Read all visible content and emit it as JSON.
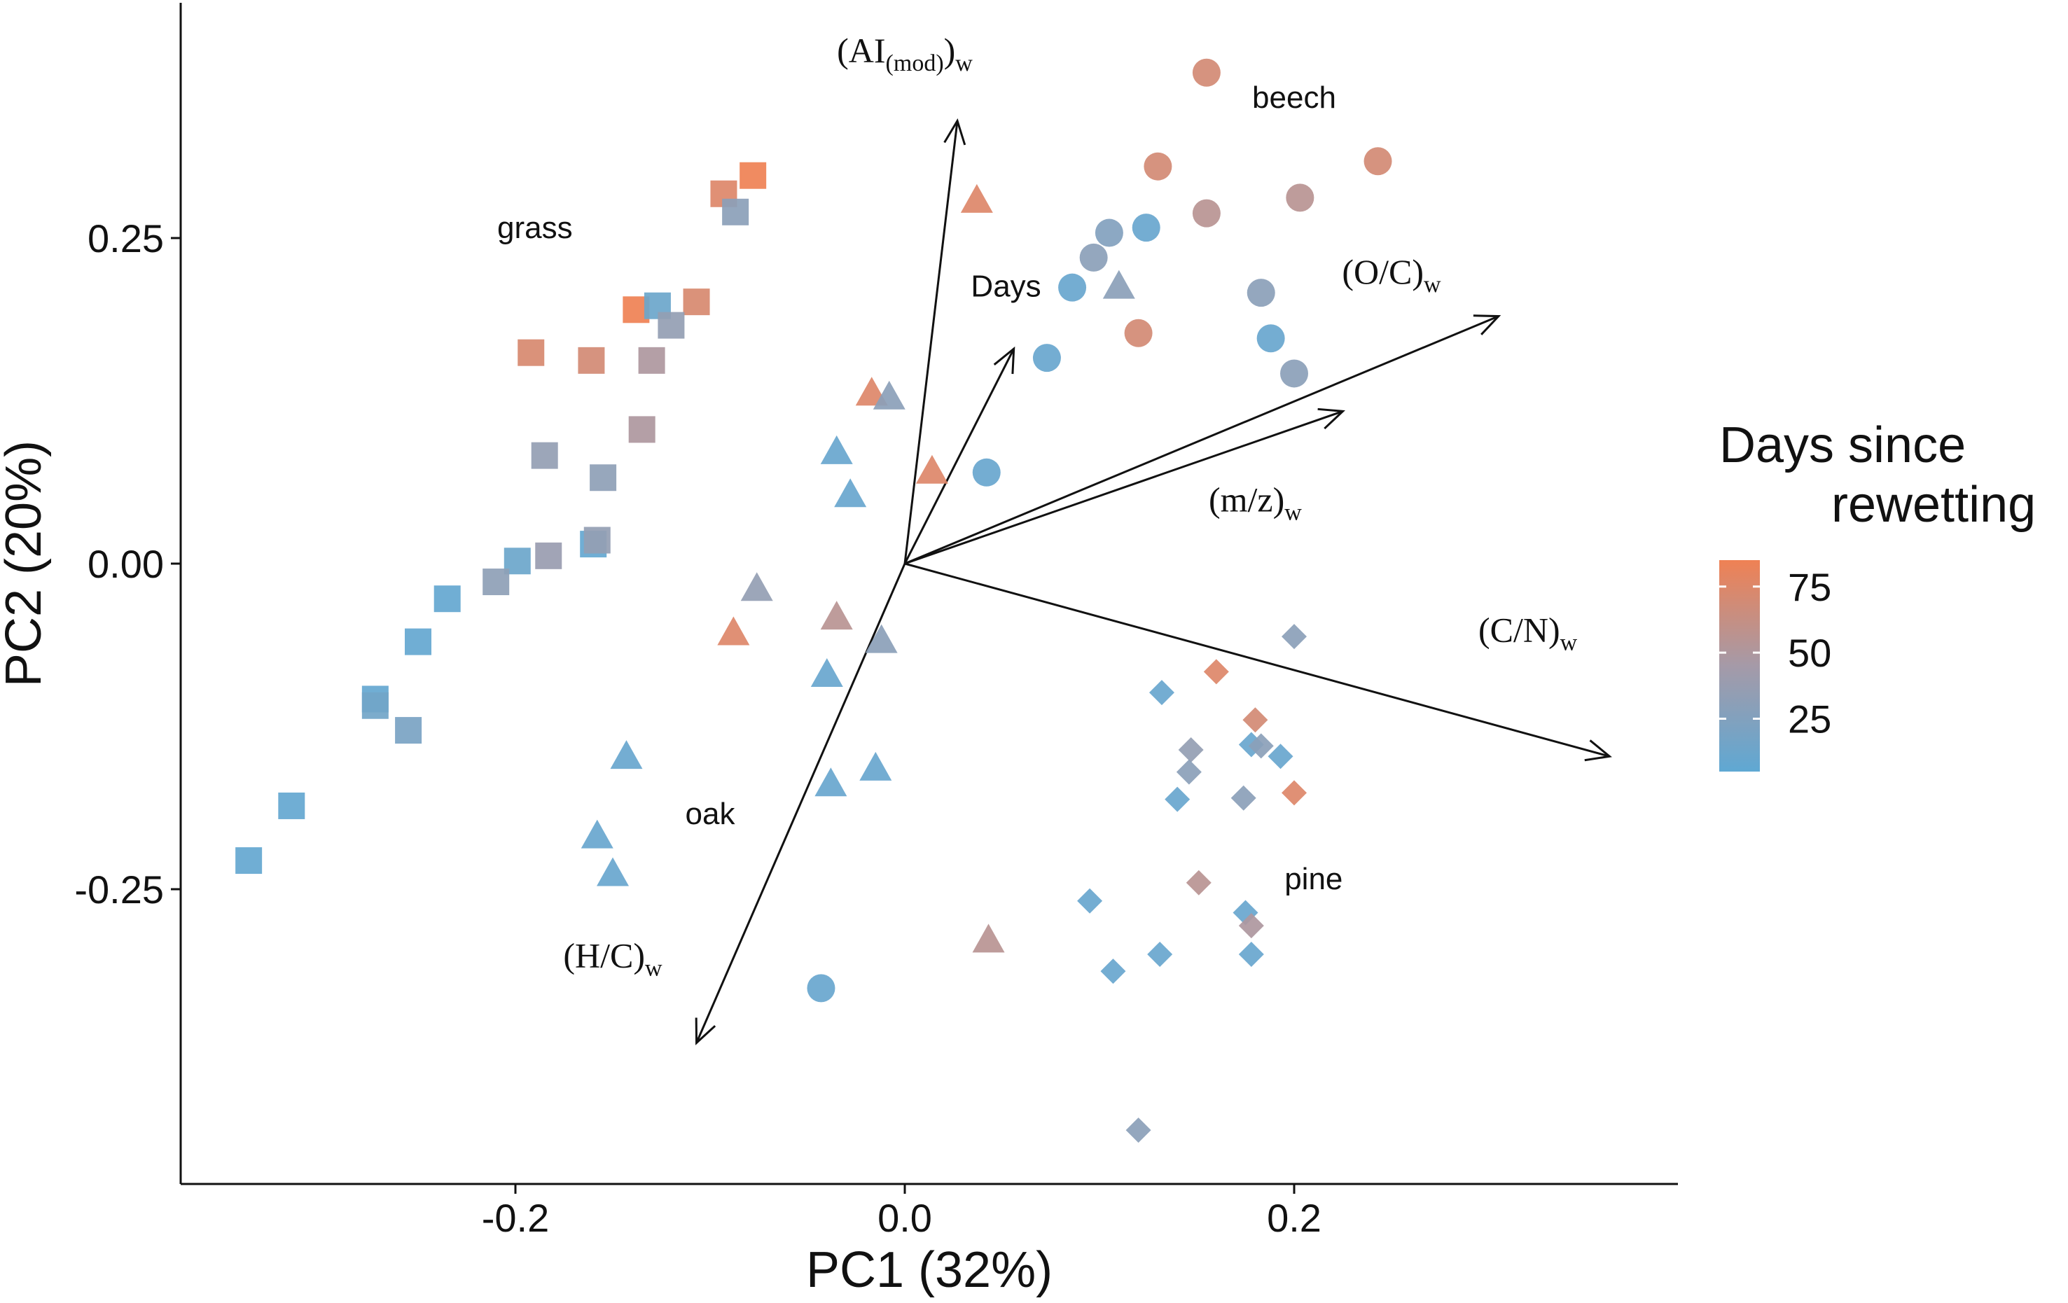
{
  "chart_data": {
    "type": "scatter",
    "title": "",
    "xlabel": "PC1 (32%)",
    "ylabel": "PC2 (20%)",
    "xlim": [
      -0.37,
      0.4
    ],
    "ylim": [
      -0.475,
      0.43
    ],
    "x_ticks": [
      -0.2,
      0.0,
      0.2
    ],
    "x_tick_labels": [
      "-0.2",
      "0.0",
      "0.2"
    ],
    "y_ticks": [
      -0.25,
      0.0,
      0.25
    ],
    "y_tick_labels": [
      "-0.25",
      "0.00",
      "0.25"
    ],
    "grid": false,
    "legend": {
      "title_line1": "Days since",
      "title_line2": "rewetting",
      "position": "right",
      "color_range": [
        5,
        85
      ],
      "color_low": "#5fa8d3",
      "color_mid": "#a59aa8",
      "color_high": "#ef8154",
      "ticks": [
        75,
        50,
        25
      ],
      "tick_labels": [
        "75",
        "50",
        "25"
      ]
    },
    "group_labels": [
      {
        "text": "grass",
        "x": -0.19,
        "y": 0.25
      },
      {
        "text": "beech",
        "x": 0.2,
        "y": 0.35
      },
      {
        "text": "oak",
        "x": -0.1,
        "y": -0.2
      },
      {
        "text": "pine",
        "x": 0.21,
        "y": -0.25
      }
    ],
    "vectors": [
      {
        "name": "(AI(mod))w",
        "base": "(AI",
        "sub": "(mod)",
        "close": ")",
        "sub2": "w",
        "x": 0.027,
        "y": 0.34,
        "label_x": 0.0,
        "label_y": 0.385
      },
      {
        "name": "Days",
        "base": "Days",
        "sub": "",
        "close": "",
        "sub2": "",
        "x": 0.056,
        "y": 0.165,
        "label_x": 0.052,
        "label_y": 0.205
      },
      {
        "name": "(O/C)w",
        "base": "(O/C)",
        "sub": "",
        "close": "",
        "sub2": "w",
        "x": 0.305,
        "y": 0.19,
        "label_x": 0.25,
        "label_y": 0.215
      },
      {
        "name": "(m/z)w",
        "base": "(m/z)",
        "sub": "",
        "close": "",
        "sub2": "w",
        "x": 0.225,
        "y": 0.117,
        "label_x": 0.18,
        "label_y": 0.04
      },
      {
        "name": "(C/N)w",
        "base": "(C/N)",
        "sub": "",
        "close": "",
        "sub2": "w",
        "x": 0.362,
        "y": -0.148,
        "label_x": 0.32,
        "label_y": -0.06
      },
      {
        "name": "(H/C)w",
        "base": "(H/C)",
        "sub": "",
        "close": "",
        "sub2": "w",
        "x": -0.107,
        "y": -0.368,
        "label_x": -0.15,
        "label_y": -0.31
      }
    ],
    "series": [
      {
        "name": "grass",
        "shape": "square",
        "points": [
          {
            "x": -0.078,
            "y": 0.298,
            "days": 85
          },
          {
            "x": -0.093,
            "y": 0.284,
            "days": 75
          },
          {
            "x": -0.087,
            "y": 0.27,
            "days": 30
          },
          {
            "x": -0.138,
            "y": 0.195,
            "days": 85
          },
          {
            "x": -0.127,
            "y": 0.198,
            "days": 12
          },
          {
            "x": -0.107,
            "y": 0.201,
            "days": 72
          },
          {
            "x": -0.12,
            "y": 0.183,
            "days": 35
          },
          {
            "x": -0.192,
            "y": 0.162,
            "days": 72
          },
          {
            "x": -0.161,
            "y": 0.156,
            "days": 70
          },
          {
            "x": -0.13,
            "y": 0.156,
            "days": 50
          },
          {
            "x": -0.135,
            "y": 0.103,
            "days": 50
          },
          {
            "x": -0.185,
            "y": 0.083,
            "days": 35
          },
          {
            "x": -0.155,
            "y": 0.066,
            "days": 32
          },
          {
            "x": -0.16,
            "y": 0.015,
            "days": 8
          },
          {
            "x": -0.158,
            "y": 0.018,
            "days": 35
          },
          {
            "x": -0.183,
            "y": 0.006,
            "days": 38
          },
          {
            "x": -0.199,
            "y": 0.002,
            "days": 12
          },
          {
            "x": -0.21,
            "y": -0.014,
            "days": 32
          },
          {
            "x": -0.235,
            "y": -0.027,
            "days": 8
          },
          {
            "x": -0.25,
            "y": -0.06,
            "days": 8
          },
          {
            "x": -0.272,
            "y": -0.104,
            "days": 8
          },
          {
            "x": -0.272,
            "y": -0.109,
            "days": 15
          },
          {
            "x": -0.255,
            "y": -0.128,
            "days": 20
          },
          {
            "x": -0.315,
            "y": -0.186,
            "days": 8
          },
          {
            "x": -0.337,
            "y": -0.228,
            "days": 8
          }
        ]
      },
      {
        "name": "beech",
        "shape": "circle",
        "points": [
          {
            "x": 0.155,
            "y": 0.377,
            "days": 70
          },
          {
            "x": 0.13,
            "y": 0.305,
            "days": 70
          },
          {
            "x": 0.243,
            "y": 0.309,
            "days": 70
          },
          {
            "x": 0.155,
            "y": 0.269,
            "days": 55
          },
          {
            "x": 0.203,
            "y": 0.281,
            "days": 55
          },
          {
            "x": 0.105,
            "y": 0.254,
            "days": 25
          },
          {
            "x": 0.124,
            "y": 0.258,
            "days": 10
          },
          {
            "x": 0.097,
            "y": 0.235,
            "days": 30
          },
          {
            "x": 0.086,
            "y": 0.212,
            "days": 10
          },
          {
            "x": 0.183,
            "y": 0.208,
            "days": 30
          },
          {
            "x": 0.12,
            "y": 0.177,
            "days": 70
          },
          {
            "x": 0.188,
            "y": 0.173,
            "days": 10
          },
          {
            "x": 0.2,
            "y": 0.146,
            "days": 30
          },
          {
            "x": 0.073,
            "y": 0.158,
            "days": 10
          },
          {
            "x": 0.042,
            "y": 0.07,
            "days": 10
          },
          {
            "x": -0.043,
            "y": -0.326,
            "days": 10
          }
        ]
      },
      {
        "name": "oak",
        "shape": "triangle",
        "points": [
          {
            "x": 0.037,
            "y": 0.278,
            "days": 75
          },
          {
            "x": 0.11,
            "y": 0.212,
            "days": 30
          },
          {
            "x": -0.017,
            "y": 0.13,
            "days": 75
          },
          {
            "x": -0.008,
            "y": 0.127,
            "days": 30
          },
          {
            "x": -0.035,
            "y": 0.085,
            "days": 10
          },
          {
            "x": 0.014,
            "y": 0.07,
            "days": 75
          },
          {
            "x": -0.028,
            "y": 0.052,
            "days": 10
          },
          {
            "x": -0.076,
            "y": -0.02,
            "days": 35
          },
          {
            "x": -0.035,
            "y": -0.042,
            "days": 55
          },
          {
            "x": -0.088,
            "y": -0.054,
            "days": 75
          },
          {
            "x": -0.012,
            "y": -0.06,
            "days": 30
          },
          {
            "x": -0.04,
            "y": -0.086,
            "days": 10
          },
          {
            "x": -0.143,
            "y": -0.149,
            "days": 10
          },
          {
            "x": -0.015,
            "y": -0.158,
            "days": 10
          },
          {
            "x": -0.038,
            "y": -0.17,
            "days": 10
          },
          {
            "x": -0.158,
            "y": -0.21,
            "days": 10
          },
          {
            "x": -0.15,
            "y": -0.239,
            "days": 10
          },
          {
            "x": 0.043,
            "y": -0.29,
            "days": 55
          }
        ]
      },
      {
        "name": "pine",
        "shape": "diamond",
        "points": [
          {
            "x": 0.2,
            "y": -0.056,
            "days": 30
          },
          {
            "x": 0.16,
            "y": -0.083,
            "days": 75
          },
          {
            "x": 0.132,
            "y": -0.099,
            "days": 10
          },
          {
            "x": 0.18,
            "y": -0.12,
            "days": 70
          },
          {
            "x": 0.147,
            "y": -0.143,
            "days": 35
          },
          {
            "x": 0.178,
            "y": -0.139,
            "days": 10
          },
          {
            "x": 0.183,
            "y": -0.14,
            "days": 30
          },
          {
            "x": 0.193,
            "y": -0.148,
            "days": 10
          },
          {
            "x": 0.146,
            "y": -0.16,
            "days": 30
          },
          {
            "x": 0.2,
            "y": -0.176,
            "days": 75
          },
          {
            "x": 0.14,
            "y": -0.181,
            "days": 10
          },
          {
            "x": 0.174,
            "y": -0.18,
            "days": 30
          },
          {
            "x": 0.151,
            "y": -0.245,
            "days": 55
          },
          {
            "x": 0.095,
            "y": -0.259,
            "days": 10
          },
          {
            "x": 0.175,
            "y": -0.268,
            "days": 10
          },
          {
            "x": 0.178,
            "y": -0.278,
            "days": 50
          },
          {
            "x": 0.131,
            "y": -0.3,
            "days": 10
          },
          {
            "x": 0.107,
            "y": -0.313,
            "days": 10
          },
          {
            "x": 0.178,
            "y": -0.3,
            "days": 10
          },
          {
            "x": 0.12,
            "y": -0.435,
            "days": 30
          }
        ]
      }
    ]
  }
}
